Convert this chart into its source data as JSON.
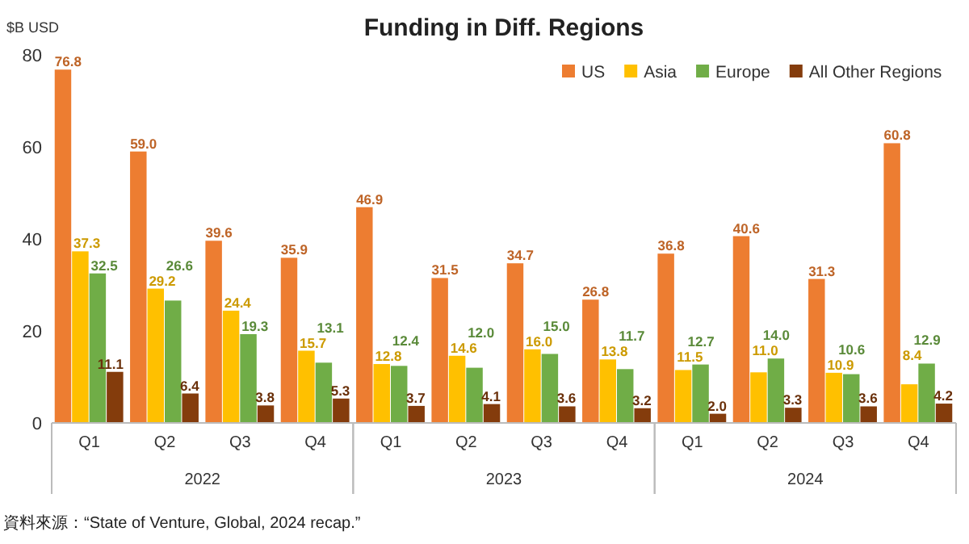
{
  "chart_data": {
    "type": "bar",
    "title": "Funding in Diff. Regions",
    "ylabel": "$B USD",
    "categories": [
      "Q1",
      "Q2",
      "Q3",
      "Q4",
      "Q1",
      "Q2",
      "Q3",
      "Q4",
      "Q1",
      "Q2",
      "Q3",
      "Q4"
    ],
    "series": [
      {
        "name": "US",
        "color": "#ed7d31",
        "values": [
          76.8,
          59.0,
          39.6,
          35.9,
          46.9,
          31.5,
          34.7,
          26.8,
          36.8,
          40.6,
          31.3,
          60.8
        ],
        "value_labels": [
          "76.8",
          "59.0",
          "39.6",
          "35.9",
          "46.9",
          "31.5",
          "34.7",
          "26.8",
          "36.8",
          "40.6",
          "31.3",
          "60.8"
        ]
      },
      {
        "name": "Asia",
        "color": "#ffc000",
        "values": [
          37.3,
          29.2,
          24.4,
          15.7,
          12.8,
          14.6,
          16.0,
          13.8,
          11.5,
          11.0,
          10.9,
          8.4
        ],
        "value_labels": [
          "37.3",
          "29.2",
          "24.4",
          "15.7",
          "12.8",
          "14.6",
          "16.0",
          "13.8",
          "11.5",
          "11.0",
          "10.9",
          "8.4"
        ]
      },
      {
        "name": "Europe",
        "color": "#70ad47",
        "values": [
          32.5,
          26.6,
          19.3,
          13.1,
          12.4,
          12.0,
          15.0,
          11.7,
          12.7,
          14.0,
          10.6,
          12.9
        ],
        "value_labels": [
          "32.5",
          "26.6",
          "19.3",
          "13.1",
          "12.4",
          "12.0",
          "15.0",
          "11.7",
          "12.7",
          "14.0",
          "10.6",
          "12.9"
        ]
      },
      {
        "name": "All Other Regions",
        "color": "#843c0c",
        "values": [
          11.1,
          6.4,
          3.8,
          5.3,
          3.7,
          4.1,
          3.6,
          3.2,
          2.0,
          3.3,
          3.6,
          4.2
        ],
        "value_labels": [
          "11.1",
          "6.4",
          "3.8",
          "5.3",
          "3.7",
          "4.1",
          "3.6",
          "3.2",
          "2.0",
          "3.3",
          "3.6",
          "4.2"
        ]
      }
    ],
    "ylim": [
      0,
      80
    ],
    "yticks": [
      0,
      20,
      40,
      60,
      80
    ],
    "grid": false,
    "legend": "top right",
    "annotations": [
      "2022",
      "2023",
      "2024",
      "資料來源：“State of Venture, Global, 2024 recap.”"
    ]
  }
}
